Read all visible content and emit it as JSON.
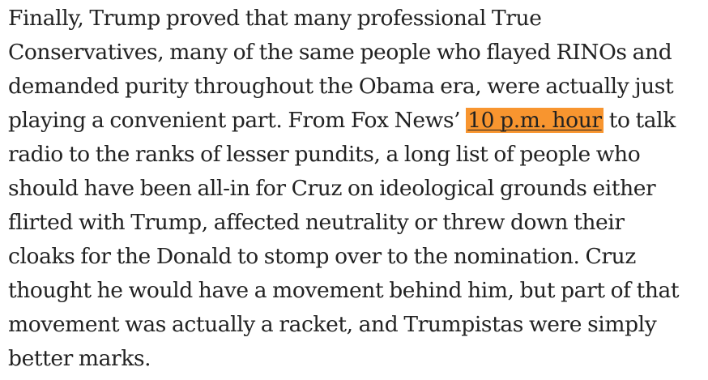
{
  "paragraph": {
    "lines": [
      "Finally, Trump proved that many professional True",
      "Conservatives, many of the same people who flayed RINOs and",
      "demanded purity throughout the Obama era, were actually just",
      "playing a convenient part. From Fox News’ ",
      "radio to the ranks of lesser pundits, a long list of people who",
      "should have been all-in for Cruz on ideological grounds either",
      "flirted with Trump, affected neutrality or threw down their",
      "cloaks for the Donald to stomp over to the nomination. Cruz",
      "thought he would have a movement behind him, but part of that",
      "movement was actually a racket, and Trumpistas were simply",
      "better marks."
    ],
    "highlight_text": "10 p.m. hour",
    "after_highlight": " to talk",
    "highlight_color": "#f8952f"
  }
}
